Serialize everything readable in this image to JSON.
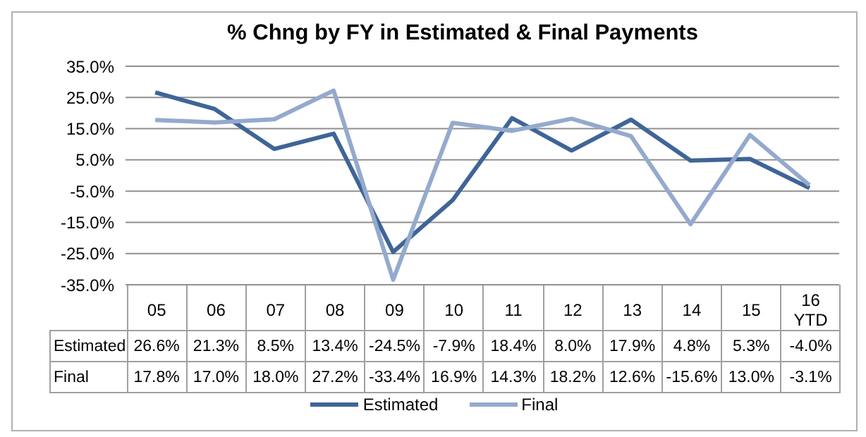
{
  "chart_data": {
    "type": "line",
    "title": "% Chng by FY in Estimated & Final Payments",
    "categories": [
      "05",
      "06",
      "07",
      "08",
      "09",
      "10",
      "11",
      "12",
      "13",
      "14",
      "15",
      "16 YTD"
    ],
    "series": [
      {
        "name": "Estimated",
        "color": "#3f6597",
        "values": [
          26.6,
          21.3,
          8.5,
          13.4,
          -24.5,
          -7.9,
          18.4,
          8.0,
          17.9,
          4.8,
          5.3,
          -4.0
        ],
        "value_labels": [
          "26.6%",
          "21.3%",
          "8.5%",
          "13.4%",
          "-24.5%",
          "-7.9%",
          "18.4%",
          "8.0%",
          "17.9%",
          "4.8%",
          "5.3%",
          "-4.0%"
        ]
      },
      {
        "name": "Final",
        "color": "#94aacd",
        "values": [
          17.8,
          17.0,
          18.0,
          27.2,
          -33.4,
          16.9,
          14.3,
          18.2,
          12.6,
          -15.6,
          13.0,
          -3.1
        ],
        "value_labels": [
          "17.8%",
          "17.0%",
          "18.0%",
          "27.2%",
          "-33.4%",
          "16.9%",
          "14.3%",
          "18.2%",
          "12.6%",
          "-15.6%",
          "13.0%",
          "-3.1%"
        ]
      }
    ],
    "ylim": [
      -35,
      35
    ],
    "yticks": [
      {
        "value": -35,
        "label": "-35.0%"
      },
      {
        "value": -25,
        "label": "-25.0%"
      },
      {
        "value": -15,
        "label": "-15.0%"
      },
      {
        "value": -5,
        "label": "-5.0%"
      },
      {
        "value": 5,
        "label": "5.0%"
      },
      {
        "value": 15,
        "label": "15.0%"
      },
      {
        "value": 25,
        "label": "25.0%"
      },
      {
        "value": 35,
        "label": "35.0%"
      }
    ],
    "grid": "y",
    "legend": "bottom",
    "marker": "none",
    "line_style": "solid"
  }
}
